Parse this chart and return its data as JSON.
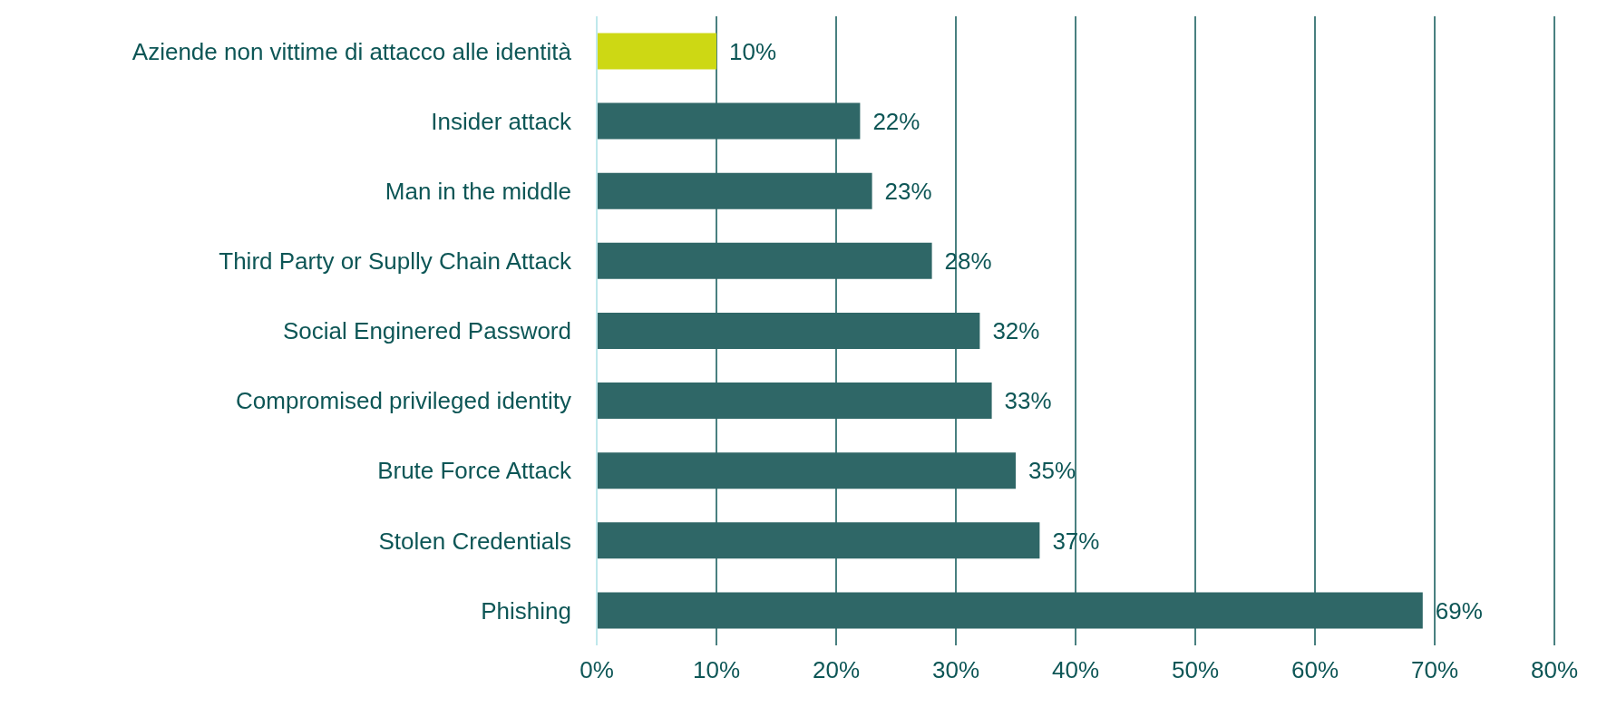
{
  "chart_data": {
    "type": "bar",
    "orientation": "horizontal",
    "categories": [
      "Aziende non vittime di attacco alle identità",
      "Insider attack",
      "Man in the middle",
      "Third Party or Suplly Chain Attack",
      "Social Enginered Password",
      "Compromised privileged identity",
      "Brute Force Attack",
      "Stolen Credentials",
      "Phishing"
    ],
    "values": [
      10,
      22,
      23,
      28,
      32,
      33,
      35,
      37,
      69
    ],
    "value_labels": [
      "10%",
      "22%",
      "23%",
      "28%",
      "32%",
      "33%",
      "35%",
      "37%",
      "69%"
    ],
    "colors": [
      "#cdd814",
      "#2f6767",
      "#2f6767",
      "#2f6767",
      "#2f6767",
      "#2f6767",
      "#2f6767",
      "#2f6767",
      "#2f6767"
    ],
    "xlim": [
      0,
      80
    ],
    "xticks": [
      {
        "value": 0,
        "label": "0%"
      },
      {
        "value": 10,
        "label": "10%"
      },
      {
        "value": 20,
        "label": "20%"
      },
      {
        "value": 30,
        "label": "30%"
      },
      {
        "value": 40,
        "label": "40%"
      },
      {
        "value": 50,
        "label": "50%"
      },
      {
        "value": 60,
        "label": "60%"
      },
      {
        "value": 70,
        "label": "70%"
      },
      {
        "value": 80,
        "label": "80%"
      }
    ],
    "grid": "x",
    "legend": false
  }
}
